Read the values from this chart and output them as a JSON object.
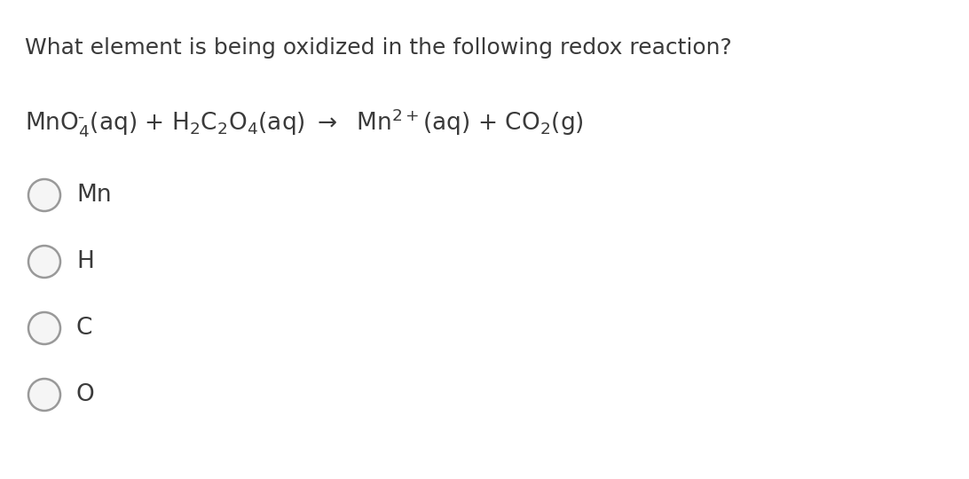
{
  "background_color": "#ffffff",
  "question_text": "What element is being oxidized in the following redox reaction?",
  "question_fontsize": 18,
  "question_color": "#3a3a3a",
  "reaction_color": "#3a3a3a",
  "reaction_fontsize": 19,
  "options": [
    "Mn",
    "H",
    "C",
    "O"
  ],
  "option_fontsize": 19,
  "option_color": "#3a3a3a",
  "circle_edge_color": "#999999",
  "circle_face_color": "#f5f5f5",
  "circle_linewidth": 1.8,
  "fig_width": 10.92,
  "fig_height": 5.4,
  "dpi": 100
}
